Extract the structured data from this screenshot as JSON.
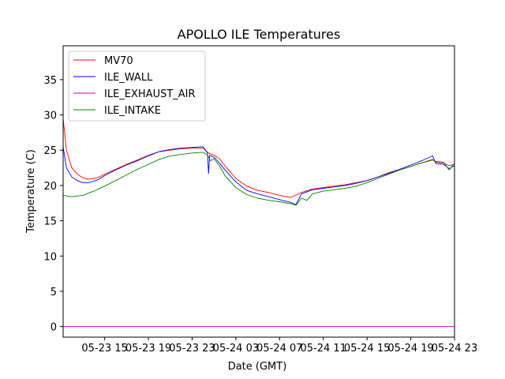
{
  "chart_data": {
    "type": "line",
    "title": "APOLLO ILE Temperatures",
    "xlabel": "Date (GMT)",
    "ylabel": "Temperature (C)",
    "x_unit": "hours since 05-23 00:00 GMT",
    "xlim": [
      11.2,
      47.0
    ],
    "ylim": [
      -1.5,
      39.8
    ],
    "xticks": [
      {
        "value": 15,
        "label": "05-23 15"
      },
      {
        "value": 19,
        "label": "05-23 19"
      },
      {
        "value": 23,
        "label": "05-23 23"
      },
      {
        "value": 27,
        "label": "05-24 03"
      },
      {
        "value": 31,
        "label": "05-24 07"
      },
      {
        "value": 35,
        "label": "05-24 11"
      },
      {
        "value": 39,
        "label": "05-24 15"
      },
      {
        "value": 43,
        "label": "05-24 19"
      },
      {
        "value": 47,
        "label": "05-24 23"
      }
    ],
    "yticks": [
      0,
      5,
      10,
      15,
      20,
      25,
      30,
      35
    ],
    "legend_position": "upper-left",
    "series": [
      {
        "name": "MV70",
        "color": "#ff0000",
        "x": [
          11.2,
          11.5,
          12.0,
          12.5,
          13.0,
          13.5,
          14.0,
          14.5,
          15.0,
          16.0,
          17.0,
          18.0,
          19.0,
          20.0,
          21.0,
          22.0,
          23.0,
          24.0,
          24.5,
          25.0,
          25.5,
          26.0,
          27.0,
          28.0,
          29.0,
          30.0,
          31.0,
          32.0,
          33.0,
          34.0,
          35.0,
          36.0,
          37.0,
          38.0,
          39.0,
          40.0,
          41.0,
          42.0,
          43.0,
          44.0,
          45.0,
          45.3,
          46.0,
          46.5,
          47.0
        ],
        "values": [
          29.5,
          25.0,
          22.5,
          21.6,
          21.1,
          20.9,
          21.0,
          21.2,
          21.6,
          22.3,
          23.0,
          23.6,
          24.3,
          24.8,
          25.0,
          25.2,
          25.3,
          25.3,
          24.6,
          24.3,
          23.8,
          22.8,
          21.0,
          19.9,
          19.3,
          19.0,
          18.6,
          18.3,
          19.0,
          19.5,
          19.7,
          19.9,
          20.1,
          20.4,
          20.7,
          21.2,
          21.7,
          22.2,
          22.7,
          23.2,
          23.7,
          23.3,
          23.2,
          22.8,
          23.0
        ]
      },
      {
        "name": "ILE_WALL",
        "color": "#0000ff",
        "x": [
          11.2,
          11.5,
          12.0,
          12.5,
          13.0,
          13.5,
          14.0,
          14.5,
          15.0,
          16.0,
          17.0,
          18.0,
          19.0,
          20.0,
          21.0,
          22.0,
          23.0,
          24.0,
          24.4,
          24.5,
          24.6,
          25.0,
          25.5,
          26.0,
          27.0,
          28.0,
          29.0,
          30.0,
          31.0,
          32.0,
          32.5,
          33.0,
          34.0,
          35.0,
          36.0,
          37.0,
          38.0,
          39.0,
          40.0,
          41.0,
          42.0,
          43.0,
          44.0,
          45.0,
          45.3,
          46.0,
          46.5,
          47.0
        ],
        "values": [
          25.5,
          22.5,
          21.2,
          20.7,
          20.4,
          20.4,
          20.6,
          20.9,
          21.4,
          22.2,
          22.9,
          23.5,
          24.2,
          24.8,
          25.1,
          25.3,
          25.4,
          25.5,
          24.6,
          21.7,
          24.3,
          24.0,
          23.2,
          22.2,
          20.5,
          19.3,
          18.8,
          18.4,
          18.0,
          17.6,
          17.3,
          18.8,
          19.4,
          19.6,
          19.8,
          20.0,
          20.3,
          20.7,
          21.2,
          21.8,
          22.3,
          22.9,
          23.5,
          24.2,
          23.1,
          23.0,
          22.4,
          22.8
        ]
      },
      {
        "name": "ILE_EXHAUST_AIR",
        "color": "#bf00bf",
        "x": [
          11.2,
          47.0
        ],
        "values": [
          0.0,
          0.0
        ]
      },
      {
        "name": "ILE_INTAKE",
        "color": "#008000",
        "x": [
          11.2,
          12.0,
          13.0,
          14.0,
          15.0,
          16.0,
          17.0,
          18.0,
          19.0,
          20.0,
          21.0,
          22.0,
          23.0,
          24.0,
          24.4,
          24.7,
          25.0,
          25.5,
          26.0,
          27.0,
          28.0,
          29.0,
          30.0,
          31.0,
          32.0,
          32.5,
          33.0,
          33.5,
          34.0,
          35.0,
          36.0,
          37.0,
          38.0,
          39.0,
          40.0,
          41.0,
          42.0,
          43.0,
          44.0,
          45.0,
          45.3,
          46.0,
          46.5,
          47.0
        ],
        "values": [
          18.6,
          18.4,
          18.6,
          19.2,
          19.9,
          20.7,
          21.5,
          22.3,
          23.0,
          23.7,
          24.2,
          24.4,
          24.6,
          24.7,
          24.3,
          23.5,
          23.8,
          22.8,
          21.4,
          19.7,
          18.7,
          18.2,
          17.9,
          17.7,
          17.4,
          17.2,
          18.2,
          17.9,
          18.8,
          19.2,
          19.4,
          19.6,
          19.9,
          20.4,
          21.0,
          21.6,
          22.2,
          22.7,
          23.2,
          23.6,
          23.4,
          23.3,
          22.2,
          23.1
        ]
      }
    ]
  }
}
